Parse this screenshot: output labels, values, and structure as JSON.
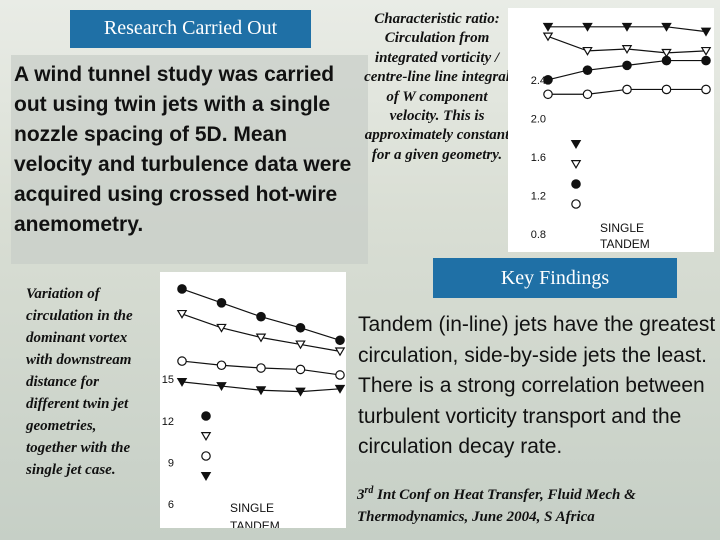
{
  "header": {
    "research_title": "Research Carried Out",
    "key_title": "Key Findings"
  },
  "intro_text": "A wind tunnel study was carried out using twin jets with a single nozzle spacing of 5D. Mean velocity and turbulence data were acquired using crossed hot-wire anemometry.",
  "ratio_text": "Characteristic ratio: Circulation from integrated vorticity / centre-line line integral of W component velocity. This is approximately constant for a given geometry.",
  "variation_text": "Variation of circulation in the dominant vortex with downstream distance for different twin jet geometries, together with the single jet case.",
  "findings_text": "Tandem (in-line) jets have the greatest circulation, side-by-side jets the least. There is a strong correlation between turbulent vorticity transport and the circulation decay rate.",
  "conference": {
    "ordinal": "3",
    "ordinal_suffix": "rd",
    "text": " Int Conf on Heat Transfer, Fluid Mech & Thermodynamics, June 2004, S Africa"
  },
  "chart_data": [
    {
      "type": "line",
      "title": "",
      "xlabel": "",
      "ylabel": "",
      "ylim": [
        0.8,
        3.0
      ],
      "y_ticks": [
        "2.4",
        "2.0",
        "1.6",
        "1.2",
        "0.8"
      ],
      "x": [
        1,
        2,
        3,
        4,
        5
      ],
      "legend_labels": [
        "SINGLE",
        "TANDEM"
      ],
      "legend_position": "bottom-left",
      "series": [
        {
          "marker": "triangle-down-filled",
          "values": [
            2.95,
            2.95,
            2.95,
            2.95,
            2.9
          ]
        },
        {
          "marker": "triangle-down-open",
          "values": [
            2.85,
            2.7,
            2.72,
            2.68,
            2.7
          ]
        },
        {
          "marker": "circle-filled",
          "values": [
            2.4,
            2.5,
            2.55,
            2.6,
            2.6
          ]
        },
        {
          "marker": "circle-open",
          "values": [
            2.25,
            2.25,
            2.3,
            2.3,
            2.3
          ]
        }
      ]
    },
    {
      "type": "line",
      "title": "",
      "xlabel": "",
      "ylabel": "",
      "ylim": [
        6,
        22
      ],
      "y_ticks": [
        "15",
        "12",
        "9",
        "6"
      ],
      "x": [
        1,
        2,
        3,
        4,
        5
      ],
      "legend_labels": [
        "SINGLE",
        "TANDEM"
      ],
      "legend_position": "bottom-left",
      "series": [
        {
          "marker": "circle-filled",
          "values": [
            21.5,
            20.5,
            19.5,
            18.7,
            17.8
          ]
        },
        {
          "marker": "triangle-down-open",
          "values": [
            19.7,
            18.7,
            18.0,
            17.5,
            17.0
          ]
        },
        {
          "marker": "circle-open",
          "values": [
            16.3,
            16.0,
            15.8,
            15.7,
            15.3
          ]
        },
        {
          "marker": "triangle-down-filled",
          "values": [
            14.8,
            14.5,
            14.2,
            14.1,
            14.3
          ]
        }
      ]
    }
  ]
}
